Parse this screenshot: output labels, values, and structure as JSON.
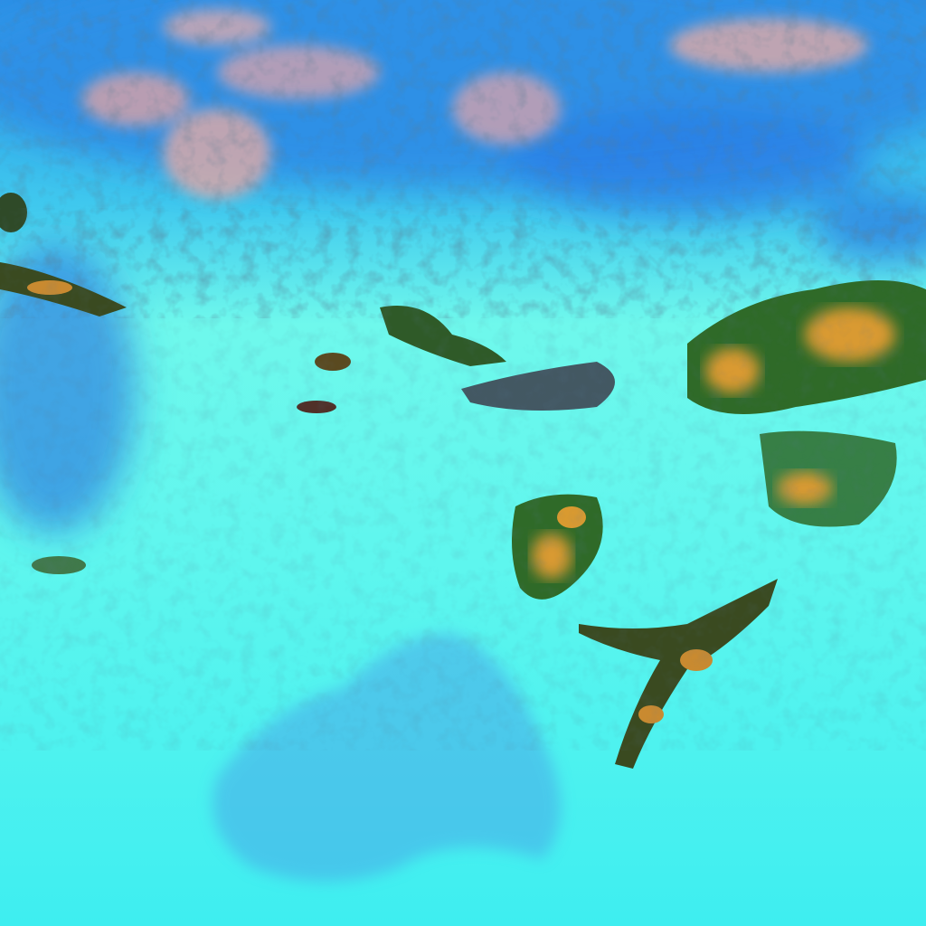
{
  "image": {
    "kind": "false-color satellite imagery",
    "colors": {
      "snow_cloud": "#3ff0ec",
      "bright_cloud": "#8ffcf0",
      "upper_blue": "#2b8fe6",
      "pinkish_terrain": "#d8a8a8",
      "deep_blue": "#1a5fd0",
      "vegetation_green": "#2f6a28",
      "bare_ground_orange": "#d99a30",
      "shadow_dark": "#20304a",
      "lake_blue": "#4aa8e8"
    }
  }
}
